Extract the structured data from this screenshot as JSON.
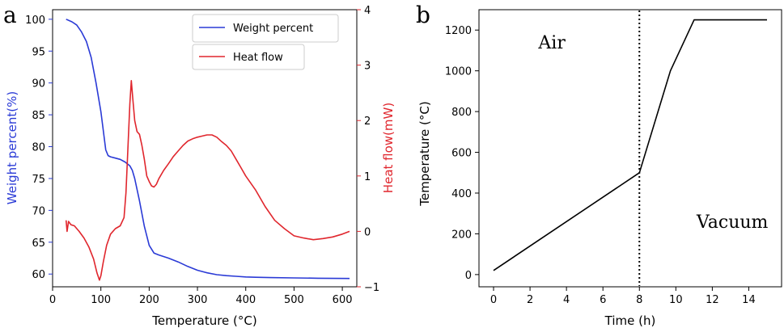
{
  "chart_data": [
    {
      "panel_label": "a",
      "type": "line",
      "xlabel": "Temperature (°C)",
      "ylabel_left": "Weight percent(%)",
      "ylabel_right": "Heat flow(mW)",
      "xlim": [
        0,
        630
      ],
      "ylim_left": [
        58,
        101.5
      ],
      "ylim_right": [
        -1,
        4
      ],
      "xticks": [
        0,
        100,
        200,
        300,
        400,
        500,
        600
      ],
      "yticks_left": [
        60,
        65,
        70,
        75,
        80,
        85,
        90,
        95,
        100
      ],
      "yticks_right": [
        -1,
        0,
        1,
        2,
        3,
        4
      ],
      "legend_position": "top-right",
      "grid": false,
      "colors": {
        "weight": "#2a3ad6",
        "heat": "#e0262d"
      },
      "series": [
        {
          "name": "Weight percent",
          "axis": "left",
          "x": [
            28,
            40,
            50,
            60,
            70,
            80,
            90,
            100,
            105,
            110,
            115,
            120,
            130,
            140,
            150,
            160,
            165,
            170,
            180,
            190,
            200,
            210,
            220,
            240,
            260,
            280,
            300,
            320,
            340,
            360,
            380,
            400,
            420,
            450,
            500,
            550,
            615
          ],
          "y": [
            100,
            99.6,
            99.1,
            98,
            96.5,
            94,
            90,
            85.5,
            82.5,
            79.5,
            78.6,
            78.4,
            78.2,
            78,
            77.6,
            77,
            76.3,
            75,
            71.5,
            67.5,
            64.5,
            63.3,
            63,
            62.5,
            61.9,
            61.2,
            60.6,
            60.2,
            59.9,
            59.75,
            59.65,
            59.55,
            59.5,
            59.45,
            59.4,
            59.35,
            59.3
          ]
        },
        {
          "name": "Heat flow",
          "axis": "right",
          "x": [
            28,
            30,
            33,
            38,
            45,
            55,
            65,
            75,
            85,
            92,
            97,
            100,
            105,
            112,
            120,
            130,
            140,
            148,
            152,
            156,
            160,
            163,
            166,
            170,
            175,
            180,
            185,
            190,
            195,
            200,
            205,
            210,
            215,
            220,
            230,
            240,
            250,
            260,
            270,
            280,
            290,
            300,
            310,
            320,
            330,
            340,
            350,
            360,
            370,
            380,
            390,
            400,
            420,
            440,
            460,
            480,
            500,
            520,
            540,
            560,
            580,
            600,
            615
          ],
          "y": [
            0.2,
            0.0,
            0.18,
            0.12,
            0.1,
            0.0,
            -0.12,
            -0.28,
            -0.5,
            -0.75,
            -0.88,
            -0.8,
            -0.55,
            -0.25,
            -0.05,
            0.05,
            0.1,
            0.25,
            0.7,
            1.5,
            2.3,
            2.72,
            2.4,
            2.0,
            1.8,
            1.75,
            1.55,
            1.3,
            1.0,
            0.9,
            0.82,
            0.8,
            0.85,
            0.95,
            1.1,
            1.22,
            1.35,
            1.45,
            1.55,
            1.63,
            1.67,
            1.7,
            1.72,
            1.74,
            1.74,
            1.7,
            1.62,
            1.55,
            1.45,
            1.3,
            1.15,
            1.0,
            0.75,
            0.45,
            0.2,
            0.05,
            -0.08,
            -0.12,
            -0.15,
            -0.13,
            -0.1,
            -0.05,
            0.0
          ]
        }
      ]
    },
    {
      "panel_label": "b",
      "type": "line",
      "xlabel": "Time (h)",
      "ylabel": "Temperature (°C)",
      "xlim": [
        -0.8,
        15.8
      ],
      "ylim": [
        -60,
        1300
      ],
      "xticks": [
        0,
        2,
        4,
        6,
        8,
        10,
        12,
        14
      ],
      "yticks": [
        0,
        200,
        400,
        600,
        800,
        1000,
        1200
      ],
      "grid": false,
      "vline_x": 8,
      "annotations": [
        {
          "text": "Air",
          "x": 3.2,
          "y": 1110
        },
        {
          "text": "Vacuum",
          "x": 13.1,
          "y": 230
        }
      ],
      "series": [
        {
          "x": [
            0,
            8,
            9.7,
            11,
            15
          ],
          "y": [
            20,
            500,
            1000,
            1250,
            1250
          ]
        }
      ]
    }
  ]
}
